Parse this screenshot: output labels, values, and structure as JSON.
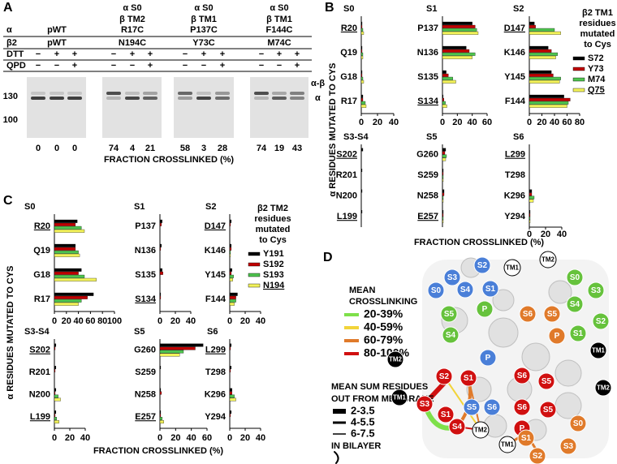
{
  "panel_a": {
    "label": "A",
    "row_labels": [
      "α",
      "β2",
      "DTT",
      "QPD"
    ],
    "dtt": [
      "−",
      "+",
      "+"
    ],
    "qpd": [
      "−",
      "−",
      "+"
    ],
    "groups": [
      {
        "alpha": "pWT",
        "beta": "pWT",
        "fractions": [
          0,
          0,
          0
        ]
      },
      {
        "header": [
          "α S0",
          "β TM2"
        ],
        "alpha": "R17C",
        "beta": "N194C",
        "fractions": [
          74,
          4,
          21
        ]
      },
      {
        "header": [
          "α S0",
          "β TM1"
        ],
        "alpha": "P137C",
        "beta": "Y73C",
        "fractions": [
          58,
          3,
          28
        ]
      },
      {
        "header": [
          "α S0",
          "β TM1"
        ],
        "alpha": "F144C",
        "beta": "M74C",
        "fractions": [
          74,
          19,
          43
        ]
      }
    ],
    "markers": [
      130,
      100
    ],
    "band_labels": [
      "α-β",
      "α"
    ],
    "xlabel": "FRACTION CROSSLINKED (%)"
  },
  "chart_data": [
    {
      "type": "grouped-hbar-grid",
      "label": "B",
      "ylabel": "α RESIDUES MUTATED TO CYS",
      "xlabel": "FRACTION CROSSLINKED (%)",
      "legend_title": [
        "β2 TM1",
        "residues",
        "mutated",
        "to Cys"
      ],
      "series_names": [
        "S72",
        "Y73",
        "M74",
        "Q75"
      ],
      "colors": [
        "#000000",
        "#c00000",
        "#4ec44e",
        "#f2f25a"
      ],
      "legend_underlined": [
        3
      ],
      "subplots": [
        {
          "title": "S0",
          "categories": [
            "R20",
            "Q19",
            "G18",
            "R17"
          ],
          "underlined": [
            0
          ],
          "xlim": [
            0,
            40
          ],
          "xticks": [
            0,
            20,
            40
          ],
          "values": [
            [
              1,
              1,
              2,
              3
            ],
            [
              1,
              1,
              2,
              2
            ],
            [
              1,
              1,
              2,
              3
            ],
            [
              2,
              2,
              5,
              6
            ]
          ]
        },
        {
          "title": "S1",
          "categories": [
            "P137",
            "N136",
            "S135",
            "S134"
          ],
          "underlined": [
            3
          ],
          "xlim": [
            0,
            60
          ],
          "xticks": [
            0,
            20,
            40,
            60
          ],
          "values": [
            [
              40,
              44,
              46,
              48
            ],
            [
              32,
              36,
              44,
              40
            ],
            [
              5,
              8,
              14,
              18
            ],
            [
              1,
              2,
              4,
              6
            ]
          ]
        },
        {
          "title": "S2",
          "categories": [
            "D147",
            "K146",
            "Y145",
            "F144"
          ],
          "underlined": [
            0
          ],
          "xlim": [
            0,
            80
          ],
          "xticks": [
            0,
            20,
            40,
            60,
            80
          ],
          "values": [
            [
              8,
              10,
              40,
              50
            ],
            [
              30,
              35,
              45,
              42
            ],
            [
              35,
              38,
              50,
              48
            ],
            [
              55,
              65,
              62,
              60
            ]
          ]
        },
        {
          "title": "S3-S4",
          "categories": [
            "S202",
            "R201",
            "N200",
            "L199"
          ],
          "underlined": [
            0,
            3
          ],
          "xlim": [
            0,
            40
          ],
          "values": [
            [
              2,
              0,
              0,
              0
            ],
            [
              1,
              0,
              0,
              0
            ],
            [
              1,
              0,
              0,
              0
            ],
            [
              1,
              0,
              0,
              0
            ]
          ]
        },
        {
          "title": "S5",
          "categories": [
            "G260",
            "S259",
            "N258",
            "E257"
          ],
          "underlined": [
            3
          ],
          "xlim": [
            0,
            40
          ],
          "values": [
            [
              4,
              3,
              5,
              4
            ],
            [
              1,
              1,
              1,
              1
            ],
            [
              2,
              2,
              1,
              1
            ],
            [
              1,
              1,
              1,
              1
            ]
          ]
        },
        {
          "title": "S6",
          "categories": [
            "L299",
            "T298",
            "K296",
            "Y294"
          ],
          "underlined": [
            0
          ],
          "xlim": [
            0,
            40
          ],
          "xticks": [
            0,
            20,
            40
          ],
          "values": [
            [
              0,
              0,
              0,
              0
            ],
            [
              0,
              0,
              0,
              0
            ],
            [
              3,
              3,
              6,
              5
            ],
            [
              1,
              1,
              1,
              1
            ]
          ]
        }
      ]
    },
    {
      "type": "grouped-hbar-grid",
      "label": "C",
      "ylabel": "α RESIDUES MUTATED TO CYS",
      "xlabel": "FRACTION CROSSLINKED (%)",
      "legend_title": [
        "β2 TM2",
        "residues",
        "mutated",
        "to Cys"
      ],
      "series_names": [
        "Y191",
        "S192",
        "S193",
        "N194"
      ],
      "colors": [
        "#000000",
        "#c00000",
        "#4ec44e",
        "#f2f25a"
      ],
      "legend_underlined": [
        3
      ],
      "subplots": [
        {
          "title": "S0",
          "categories": [
            "R20",
            "Q19",
            "G18",
            "R17"
          ],
          "underlined": [
            0
          ],
          "xlim": [
            0,
            100
          ],
          "xticks": [
            0,
            20,
            40,
            60,
            80,
            100
          ],
          "values": [
            [
              38,
              35,
              45,
              50
            ],
            [
              35,
              35,
              40,
              42
            ],
            [
              45,
              40,
              50,
              70
            ],
            [
              65,
              55,
              45,
              40
            ]
          ]
        },
        {
          "title": "S1",
          "categories": [
            "P137",
            "N136",
            "S135",
            "S134"
          ],
          "underlined": [
            3
          ],
          "xlim": [
            0,
            40
          ],
          "xticks": [
            0,
            20,
            40
          ],
          "values": [
            [
              3,
              2,
              0,
              0
            ],
            [
              2,
              1,
              0,
              0
            ],
            [
              3,
              4,
              0,
              0
            ],
            [
              1,
              1,
              0,
              0
            ]
          ]
        },
        {
          "title": "S2",
          "categories": [
            "D147",
            "K146",
            "Y145",
            "F144"
          ],
          "underlined": [
            0
          ],
          "xlim": [
            0,
            40
          ],
          "xticks": [
            0,
            20,
            40
          ],
          "values": [
            [
              2,
              1,
              0,
              0
            ],
            [
              2,
              2,
              1,
              1
            ],
            [
              3,
              2,
              5,
              4
            ],
            [
              10,
              8,
              8,
              6
            ]
          ]
        },
        {
          "title": "S3-S4",
          "categories": [
            "S202",
            "R201",
            "N200",
            "L199"
          ],
          "underlined": [
            0,
            3
          ],
          "xlim": [
            0,
            40
          ],
          "xticks": [
            0,
            20,
            40
          ],
          "values": [
            [
              2,
              1,
              0,
              0
            ],
            [
              2,
              1,
              0,
              0
            ],
            [
              2,
              1,
              5,
              8
            ],
            [
              2,
              1,
              3,
              6
            ]
          ]
        },
        {
          "title": "S5",
          "categories": [
            "G260",
            "S259",
            "N258",
            "E257"
          ],
          "underlined": [
            3
          ],
          "xlim": [
            0,
            60
          ],
          "xticks": [
            0,
            20,
            40,
            60
          ],
          "values": [
            [
              55,
              45,
              30,
              25
            ],
            [
              1,
              0,
              0,
              0
            ],
            [
              1,
              2,
              0,
              0
            ],
            [
              1,
              1,
              3,
              5
            ]
          ]
        },
        {
          "title": "S6",
          "categories": [
            "L299",
            "T298",
            "K296",
            "Y294"
          ],
          "underlined": [
            0
          ],
          "xlim": [
            0,
            40
          ],
          "xticks": [
            0,
            20,
            40
          ],
          "values": [
            [
              2,
              1,
              0,
              0
            ],
            [
              2,
              1,
              0,
              0
            ],
            [
              3,
              3,
              6,
              8
            ],
            [
              2,
              1,
              0,
              0
            ]
          ]
        }
      ]
    }
  ],
  "panel_d": {
    "label": "D",
    "legend_title": [
      "MEAN",
      "CROSSLINKING"
    ],
    "crosslink_levels": [
      {
        "label": "20-39%",
        "color": "#7ee04a"
      },
      {
        "label": "40-59%",
        "color": "#f2d43a"
      },
      {
        "label": "60-79%",
        "color": "#e07a2a"
      },
      {
        "label": "80-100%",
        "color": "#d01010"
      }
    ],
    "out_title": [
      "MEAN SUM RESIDUES",
      "OUT FROM MEMBRANE"
    ],
    "out_levels": [
      "2-3.5",
      "4-5.5",
      "6-7.5"
    ],
    "in_bilayer": "IN BILAYER",
    "nodes": [
      {
        "label": "S2",
        "color": "#4a7fd8"
      },
      {
        "label": "TM1",
        "color": "#ffffff"
      },
      {
        "label": "S3",
        "color": "#4a7fd8"
      },
      {
        "label": "S0",
        "color": "#4a7fd8"
      },
      {
        "label": "S4",
        "color": "#4a7fd8"
      },
      {
        "label": "S1",
        "color": "#4a7fd8"
      },
      {
        "label": "TM2",
        "color": "#ffffff"
      },
      {
        "label": "S0",
        "color": "#66c23c"
      },
      {
        "label": "S3",
        "color": "#66c23c"
      },
      {
        "label": "S4",
        "color": "#66c23c"
      },
      {
        "label": "S5",
        "color": "#66c23c"
      },
      {
        "label": "P",
        "color": "#66c23c"
      },
      {
        "label": "S2",
        "color": "#66c23c"
      },
      {
        "label": "S6",
        "color": "#e07a2a"
      },
      {
        "label": "S5",
        "color": "#e07a2a"
      },
      {
        "label": "P",
        "color": "#e07a2a"
      },
      {
        "label": "S1",
        "color": "#66c23c"
      },
      {
        "label": "TM2",
        "color": "#000000"
      },
      {
        "label": "S4",
        "color": "#66c23c"
      },
      {
        "label": "TM1",
        "color": "#000000"
      },
      {
        "label": "TM1",
        "color": "#000000"
      },
      {
        "label": "P",
        "color": "#4a7fd8"
      },
      {
        "label": "S3",
        "color": "#d01010"
      },
      {
        "label": "S2",
        "color": "#d01010"
      },
      {
        "label": "S1",
        "color": "#d01010"
      },
      {
        "label": "S5",
        "color": "#4a7fd8"
      },
      {
        "label": "S6",
        "color": "#4a7fd8"
      },
      {
        "label": "S6",
        "color": "#d01010"
      },
      {
        "label": "S5",
        "color": "#d01010"
      },
      {
        "label": "S6",
        "color": "#d01010"
      },
      {
        "label": "S5",
        "color": "#d01010"
      },
      {
        "label": "P",
        "color": "#d01010"
      },
      {
        "label": "S4",
        "color": "#d01010"
      },
      {
        "label": "S1",
        "color": "#d01010"
      },
      {
        "label": "TM2",
        "color": "#ffffff"
      },
      {
        "label": "TM1",
        "color": "#ffffff"
      },
      {
        "label": "S1",
        "color": "#e07a2a"
      },
      {
        "label": "S2",
        "color": "#e07a2a"
      },
      {
        "label": "S3",
        "color": "#e07a2a"
      },
      {
        "label": "S0",
        "color": "#e07a2a"
      },
      {
        "label": "TM2",
        "color": "#000000"
      }
    ]
  }
}
